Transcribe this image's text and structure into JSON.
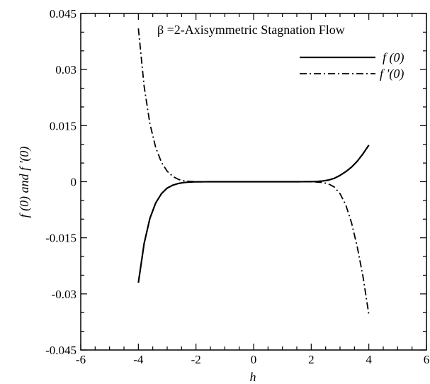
{
  "chart_data": {
    "type": "line",
    "title": "β =2-Axisymmetric Stagnation Flow",
    "xlabel": "h",
    "ylabel": "f (0) and f '(0)",
    "xlim": [
      -6,
      6
    ],
    "ylim": [
      -0.045,
      0.045
    ],
    "xticks": [
      -6,
      -4,
      -2,
      0,
      2,
      4,
      6
    ],
    "xtick_labels": [
      "-6",
      "-4",
      "-2",
      "0",
      "2",
      "4",
      "6"
    ],
    "yticks": [
      -0.045,
      -0.03,
      -0.015,
      0,
      0.015,
      0.03,
      0.045
    ],
    "ytick_labels": [
      "-0.045",
      "-0.03",
      "-0.015",
      "0",
      "0.015",
      "0.03",
      "0.045"
    ],
    "grid": false,
    "legend_position": "top-right",
    "series": [
      {
        "name": "f (0)",
        "style": "solid",
        "color": "#000000",
        "x": [
          -4.0,
          -3.8,
          -3.6,
          -3.4,
          -3.2,
          -3.0,
          -2.8,
          -2.6,
          -2.4,
          -2.2,
          -2.0,
          -1.5,
          -1.0,
          0.0,
          1.0,
          1.5,
          2.0,
          2.2,
          2.4,
          2.6,
          2.8,
          3.0,
          3.2,
          3.4,
          3.6,
          3.8,
          4.0
        ],
        "y": [
          -0.027,
          -0.0165,
          -0.0098,
          -0.0057,
          -0.0032,
          -0.0017,
          -0.0009,
          -0.00045,
          -0.0002,
          -8e-05,
          -3e-05,
          0,
          0,
          0,
          0,
          0,
          3e-05,
          8e-05,
          0.0002,
          0.00045,
          0.0009,
          0.0017,
          0.0027,
          0.0039,
          0.0055,
          0.0075,
          0.0098
        ]
      },
      {
        "name": "f '(0)",
        "style": "dashdot",
        "color": "#000000",
        "x": [
          -4.0,
          -3.8,
          -3.6,
          -3.4,
          -3.2,
          -3.0,
          -2.8,
          -2.6,
          -2.4,
          -2.2,
          -2.0,
          -1.5,
          -1.0,
          0.0,
          1.0,
          1.5,
          2.0,
          2.2,
          2.4,
          2.6,
          2.8,
          3.0,
          3.2,
          3.4,
          3.6,
          3.8,
          4.0
        ],
        "y": [
          0.041,
          0.0255,
          0.0155,
          0.0092,
          0.0052,
          0.0028,
          0.0014,
          0.0006,
          0.00022,
          8e-05,
          2e-05,
          0,
          0,
          0,
          0,
          0,
          -3e-05,
          -8e-05,
          -0.0002,
          -0.0006,
          -0.0014,
          -0.0032,
          -0.0062,
          -0.011,
          -0.0175,
          -0.0255,
          -0.0355
        ]
      }
    ]
  }
}
